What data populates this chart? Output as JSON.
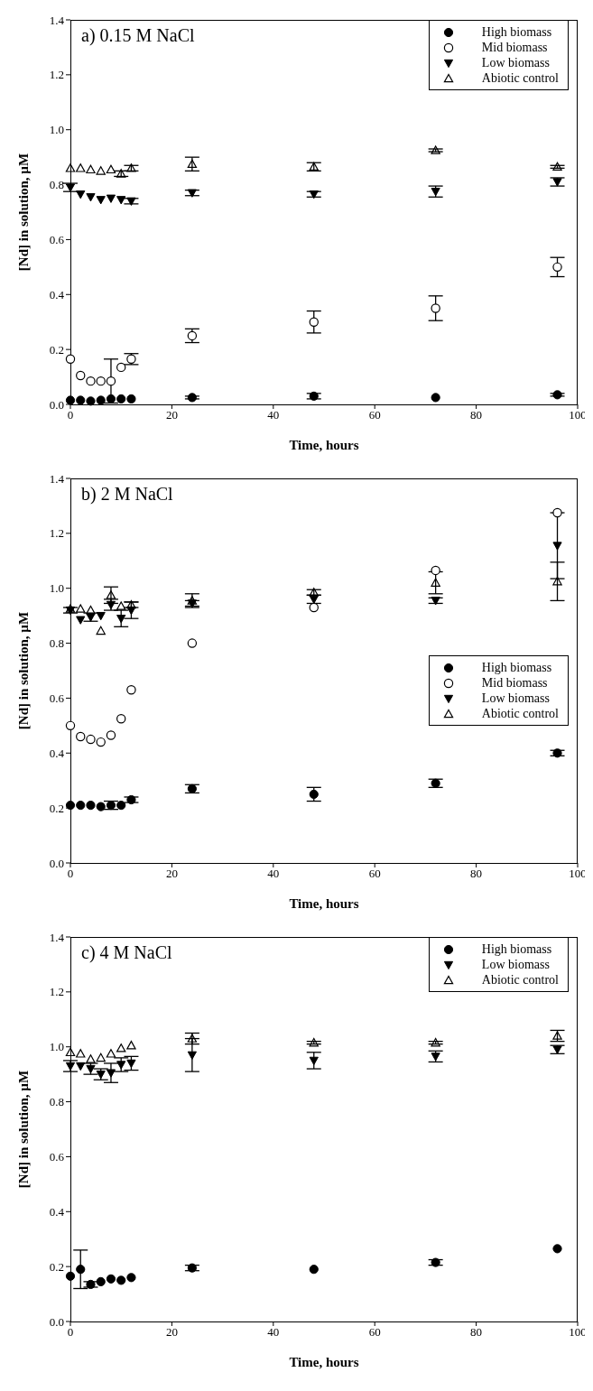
{
  "chart_data": [
    {
      "type": "scatter",
      "title": "a) 0.15 M NaCl",
      "xlabel": "Time, hours",
      "ylabel": "[Nd] in solution, µM",
      "x": [
        0,
        2,
        4,
        6,
        8,
        10,
        12,
        24,
        48,
        72,
        96
      ],
      "series": [
        {
          "name": "High biomass",
          "color": "#000000",
          "marker": "circle",
          "values": [
            0.015,
            0.015,
            0.012,
            0.015,
            0.02,
            0.02,
            0.02,
            0.025,
            0.03,
            0.025,
            0.035
          ],
          "errors": [
            null,
            null,
            null,
            null,
            null,
            null,
            null,
            0.005,
            0.01,
            null,
            0.005
          ]
        },
        {
          "name": "Mid biomass",
          "color": "#000000",
          "marker": "circle-open",
          "values": [
            0.165,
            0.105,
            0.085,
            0.085,
            0.085,
            0.135,
            0.165,
            0.25,
            0.3,
            0.35,
            0.5
          ],
          "errors": [
            null,
            null,
            null,
            null,
            0.08,
            null,
            0.02,
            0.025,
            0.04,
            0.045,
            0.035
          ]
        },
        {
          "name": "Low biomass",
          "color": "#000000",
          "marker": "triangle-down",
          "values": [
            0.79,
            0.765,
            0.755,
            0.745,
            0.75,
            0.745,
            0.74,
            0.77,
            0.765,
            0.775,
            0.81
          ],
          "errors": [
            0.015,
            null,
            null,
            null,
            null,
            null,
            0.01,
            0.01,
            0.01,
            0.02,
            0.015
          ]
        },
        {
          "name": "Abiotic control",
          "color": "#000000",
          "marker": "triangle-open",
          "values": [
            0.86,
            0.86,
            0.855,
            0.85,
            0.855,
            0.84,
            0.86,
            0.875,
            0.865,
            0.925,
            0.865
          ],
          "errors": [
            null,
            null,
            null,
            null,
            null,
            0.01,
            0.01,
            0.025,
            0.015,
            0.005,
            0.005
          ]
        }
      ],
      "xlim": [
        0,
        100
      ],
      "xticks": [
        0,
        20,
        40,
        60,
        80,
        100
      ],
      "ylim": [
        0,
        1.4
      ],
      "yticks": [
        {
          "value": 0,
          "label": "0.0"
        },
        {
          "value": 0.2,
          "label": "0.2"
        },
        {
          "value": 0.4,
          "label": "0.4"
        },
        {
          "value": 0.6,
          "label": "0.6"
        },
        {
          "value": 0.8,
          "label": "0.8"
        },
        {
          "value": 1,
          "label": "1.0"
        },
        {
          "value": 1.2,
          "label": "1.2"
        },
        {
          "value": 1.4,
          "label": "1.4"
        }
      ],
      "grid": false,
      "legend": "top right"
    },
    {
      "type": "scatter",
      "title": "b) 2 M NaCl",
      "xlabel": "Time, hours",
      "ylabel": "[Nd] in solution, µM",
      "x": [
        0,
        2,
        4,
        6,
        8,
        10,
        12,
        24,
        48,
        72,
        96
      ],
      "series": [
        {
          "name": "High biomass",
          "color": "#000000",
          "marker": "circle",
          "values": [
            0.21,
            0.21,
            0.21,
            0.205,
            0.21,
            0.21,
            0.23,
            0.27,
            0.25,
            0.29,
            0.4
          ],
          "errors": [
            null,
            null,
            null,
            null,
            0.015,
            null,
            0.01,
            0.015,
            0.025,
            0.015,
            0.01
          ]
        },
        {
          "name": "Mid biomass",
          "color": "#000000",
          "marker": "circle-open",
          "values": [
            0.5,
            0.46,
            0.45,
            0.44,
            0.465,
            0.525,
            0.63,
            0.8,
            0.93,
            1.065,
            1.275
          ],
          "errors": [
            null,
            null,
            null,
            null,
            null,
            null,
            null,
            null,
            null,
            null,
            null
          ]
        },
        {
          "name": "Low biomass",
          "color": "#000000",
          "marker": "triangle-down",
          "values": [
            0.92,
            0.885,
            0.895,
            0.9,
            0.94,
            0.89,
            0.92,
            0.945,
            0.96,
            0.955,
            1.155
          ],
          "errors": [
            0.01,
            null,
            0.015,
            null,
            0.02,
            0.03,
            0.03,
            0.01,
            0.015,
            0.01,
            0.12
          ]
        },
        {
          "name": "Abiotic control",
          "color": "#000000",
          "marker": "triangle-open",
          "values": [
            0.925,
            0.925,
            0.92,
            0.845,
            0.975,
            0.935,
            0.94,
            0.955,
            0.985,
            1.02,
            1.025
          ],
          "errors": [
            null,
            null,
            null,
            null,
            0.03,
            null,
            0.01,
            0.025,
            0.01,
            0.04,
            0.07
          ]
        }
      ],
      "xlim": [
        0,
        100
      ],
      "xticks": [
        0,
        20,
        40,
        60,
        80,
        100
      ],
      "ylim": [
        0,
        1.4
      ],
      "yticks": [
        {
          "value": 0,
          "label": "0.0"
        },
        {
          "value": 0.2,
          "label": "0.2"
        },
        {
          "value": 0.4,
          "label": "0.4"
        },
        {
          "value": 0.6,
          "label": "0.6"
        },
        {
          "value": 0.8,
          "label": "0.8"
        },
        {
          "value": 1,
          "label": "1.0"
        },
        {
          "value": 1.2,
          "label": "1.2"
        },
        {
          "value": 1.4,
          "label": "1.4"
        }
      ],
      "grid": false,
      "legend": "right"
    },
    {
      "type": "scatter",
      "title": "c) 4 M NaCl",
      "xlabel": "Time, hours",
      "ylabel": "[Nd] in solution, µM",
      "x": [
        0,
        2,
        4,
        6,
        8,
        10,
        12,
        24,
        48,
        72,
        96
      ],
      "series": [
        {
          "name": "High biomass",
          "color": "#000000",
          "marker": "circle",
          "values": [
            0.165,
            0.19,
            0.135,
            0.145,
            0.155,
            0.15,
            0.16,
            0.195,
            0.19,
            0.215,
            0.265
          ],
          "errors": [
            null,
            0.07,
            0.01,
            null,
            null,
            null,
            null,
            0.01,
            null,
            0.01,
            null
          ]
        },
        {
          "name": "Low biomass",
          "color": "#000000",
          "marker": "triangle-down",
          "values": [
            0.93,
            0.93,
            0.92,
            0.9,
            0.905,
            0.935,
            0.94,
            0.97,
            0.95,
            0.965,
            0.99
          ],
          "errors": [
            0.02,
            null,
            0.02,
            0.02,
            0.035,
            0.025,
            0.025,
            0.06,
            0.03,
            0.02,
            0.015
          ]
        },
        {
          "name": "Abiotic control",
          "color": "#000000",
          "marker": "triangle-open",
          "values": [
            0.98,
            0.975,
            0.955,
            0.96,
            0.975,
            0.995,
            1.005,
            1.03,
            1.015,
            1.015,
            1.04
          ],
          "errors": [
            null,
            null,
            null,
            null,
            null,
            null,
            null,
            0.02,
            0.005,
            0.005,
            0.02
          ]
        }
      ],
      "xlim": [
        0,
        100
      ],
      "xticks": [
        0,
        20,
        40,
        60,
        80,
        100
      ],
      "ylim": [
        0,
        1.4
      ],
      "yticks": [
        {
          "value": 0,
          "label": "0.0"
        },
        {
          "value": 0.2,
          "label": "0.2"
        },
        {
          "value": 0.4,
          "label": "0.4"
        },
        {
          "value": 0.6,
          "label": "0.6"
        },
        {
          "value": 0.8,
          "label": "0.8"
        },
        {
          "value": 1,
          "label": "1.0"
        },
        {
          "value": 1.2,
          "label": "1.2"
        },
        {
          "value": 1.4,
          "label": "1.4"
        }
      ],
      "grid": false,
      "legend": "top right"
    }
  ]
}
